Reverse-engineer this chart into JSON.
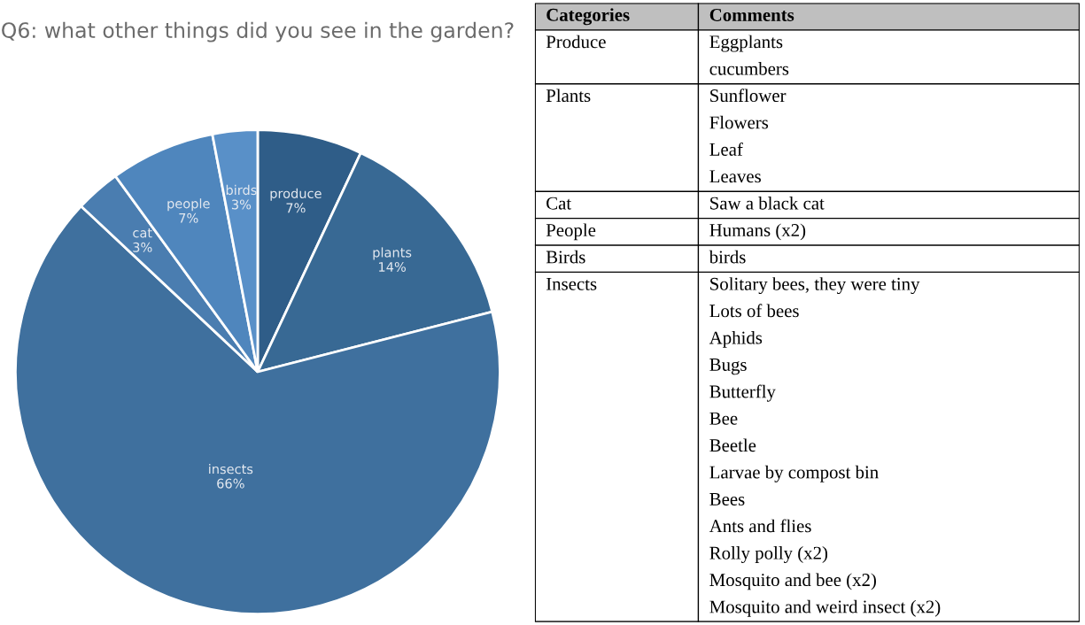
{
  "chart_data": [
    {
      "type": "pie",
      "title": "Q6: what other things did you see in the garden?",
      "categories": [
        "produce",
        "plants",
        "insects",
        "cat",
        "people",
        "birds"
      ],
      "values": [
        7,
        14,
        66,
        3,
        7,
        3
      ],
      "value_labels": [
        "7%",
        "14%",
        "66%",
        "3%",
        "7%",
        "3%"
      ],
      "colors": [
        "#2f5d88",
        "#386994",
        "#3f709e",
        "#4a7db0",
        "#4f86bd",
        "#5990c8"
      ],
      "legend": false
    },
    {
      "type": "other",
      "categories": [
        "Categories",
        "Comments"
      ],
      "y_categories": [
        "Produce",
        "Plants",
        "Cat",
        "People",
        "Birds",
        "Insects"
      ],
      "cell_labels": [
        [
          "Eggplants",
          "cucumbers"
        ],
        [
          "Sunflower",
          "Flowers",
          "Leaf",
          "Leaves"
        ],
        [
          "Saw a black cat"
        ],
        [
          "Humans (x2)"
        ],
        [
          "birds"
        ],
        [
          "Solitary bees, they were tiny",
          "Lots of bees",
          "Aphids",
          "Bugs",
          "Butterfly",
          "Bee",
          "Beetle",
          "Larvae by compost bin",
          "Bees",
          "Ants and flies",
          "Rolly polly (x2)",
          "Mosquito and bee (x2)",
          "Mosquito and weird insect (x2)"
        ]
      ]
    }
  ]
}
